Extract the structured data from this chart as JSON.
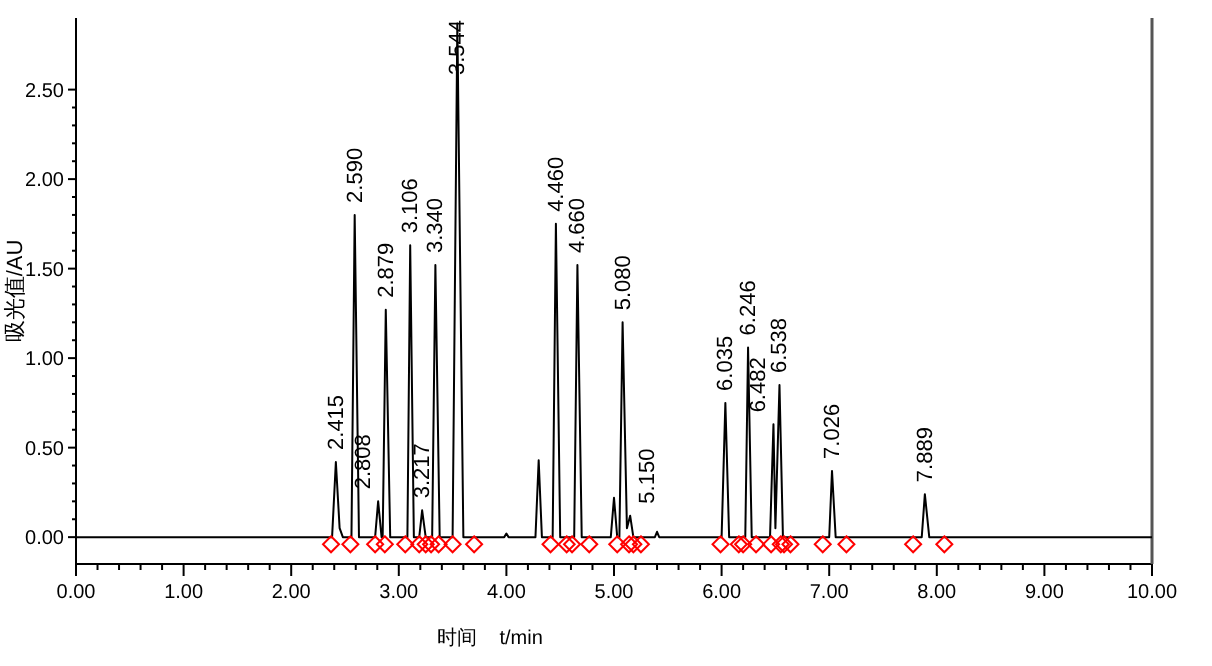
{
  "chart_data": {
    "type": "line",
    "xlabel": "时间    t/min",
    "ylabel": "吸光值/AU",
    "xlim": [
      0,
      10
    ],
    "ylim": [
      -0.15,
      2.9
    ],
    "xticks": [
      {
        "value": 0,
        "label": "0.00"
      },
      {
        "value": 1,
        "label": "1.00"
      },
      {
        "value": 2,
        "label": "2.00"
      },
      {
        "value": 3,
        "label": "3.00"
      },
      {
        "value": 4,
        "label": "4.00"
      },
      {
        "value": 5,
        "label": "5.00"
      },
      {
        "value": 6,
        "label": "6.00"
      },
      {
        "value": 7,
        "label": "7.00"
      },
      {
        "value": 8,
        "label": "8.00"
      },
      {
        "value": 9,
        "label": "9.00"
      },
      {
        "value": 10,
        "label": "10.00"
      }
    ],
    "yticks": [
      {
        "value": 0,
        "label": "0.00"
      },
      {
        "value": 0.5,
        "label": "0.50"
      },
      {
        "value": 1,
        "label": "1.00"
      },
      {
        "value": 1.5,
        "label": "1.50"
      },
      {
        "value": 2,
        "label": "2.00"
      },
      {
        "value": 2.5,
        "label": "2.50"
      }
    ],
    "grid": false,
    "series": [
      {
        "color": "#000000",
        "marker": "none",
        "x": [
          0,
          2.38,
          2.415,
          2.45,
          2.48,
          2.56,
          2.59,
          2.63,
          2.78,
          2.808,
          2.84,
          2.85,
          2.879,
          2.92,
          3.08,
          3.106,
          3.14,
          3.19,
          3.217,
          3.25,
          3.31,
          3.34,
          3.38,
          3.5,
          3.544,
          3.6,
          3.98,
          4.0,
          4.02,
          4.27,
          4.3,
          4.33,
          4.43,
          4.46,
          4.5,
          4.63,
          4.66,
          4.7,
          4.97,
          5.0,
          5.03,
          5.05,
          5.08,
          5.12,
          5.15,
          5.18,
          5.38,
          5.4,
          5.42,
          6.0,
          6.035,
          6.07,
          6.22,
          6.246,
          6.28,
          6.45,
          6.482,
          6.5,
          6.538,
          6.57,
          7.0,
          7.026,
          7.06,
          7.86,
          7.889,
          7.93,
          10
        ],
        "values": [
          0,
          0,
          0.42,
          0.05,
          0,
          0,
          1.8,
          0,
          0,
          0.2,
          0,
          0,
          1.27,
          0,
          0,
          1.63,
          0,
          0,
          0.15,
          0,
          0,
          1.52,
          0,
          0,
          2.87,
          0,
          0,
          0.02,
          0,
          0,
          0.43,
          0,
          0,
          1.75,
          0,
          0,
          1.52,
          0,
          0,
          0.22,
          0,
          0,
          1.2,
          0.05,
          0.12,
          0,
          0,
          0.03,
          0,
          0,
          0.75,
          0,
          0,
          1.06,
          0,
          0,
          0.63,
          0.05,
          0.85,
          0,
          0,
          0.37,
          0,
          0,
          0.24,
          0,
          0
        ]
      },
      {
        "type": "scatter",
        "color": "#ff0000",
        "marker": "diamond",
        "x": [
          2.37,
          2.55,
          2.78,
          2.87,
          3.06,
          3.19,
          3.25,
          3.3,
          3.37,
          3.5,
          3.7,
          4.41,
          4.56,
          4.61,
          4.77,
          5.03,
          5.14,
          5.18,
          5.25,
          5.99,
          6.16,
          6.2,
          6.32,
          6.46,
          6.55,
          6.58,
          6.64,
          6.94,
          7.16,
          7.78,
          8.07
        ],
        "values": [
          -0.04,
          -0.04,
          -0.04,
          -0.04,
          -0.04,
          -0.04,
          -0.04,
          -0.04,
          -0.04,
          -0.04,
          -0.04,
          -0.04,
          -0.04,
          -0.04,
          -0.04,
          -0.04,
          -0.04,
          -0.04,
          -0.04,
          -0.04,
          -0.04,
          -0.04,
          -0.04,
          -0.04,
          -0.04,
          -0.04,
          -0.04,
          -0.04,
          -0.04,
          -0.04,
          -0.04
        ]
      }
    ],
    "annotations": [
      {
        "text": "2.415",
        "x": 2.415,
        "y": 0.42
      },
      {
        "text": "2.590",
        "x": 2.59,
        "y": 1.8
      },
      {
        "text": "2.808",
        "x": 2.808,
        "y": 0.2
      },
      {
        "text": "2.879",
        "x": 2.879,
        "y": 1.27
      },
      {
        "text": "3.106",
        "x": 3.106,
        "y": 1.63
      },
      {
        "text": "3.217",
        "x": 3.217,
        "y": 0.15
      },
      {
        "text": "3.340",
        "x": 3.34,
        "y": 1.52
      },
      {
        "text": "3.544",
        "x": 3.544,
        "y": 2.87
      },
      {
        "text": "4.460",
        "x": 4.46,
        "y": 1.75
      },
      {
        "text": "4.660",
        "x": 4.66,
        "y": 1.52
      },
      {
        "text": "5.080",
        "x": 5.08,
        "y": 1.2
      },
      {
        "text": "5.150",
        "x": 5.15,
        "y": 0.12
      },
      {
        "text": "6.035",
        "x": 6.035,
        "y": 0.75
      },
      {
        "text": "6.246",
        "x": 6.246,
        "y": 1.06
      },
      {
        "text": "6.482",
        "x": 6.482,
        "y": 0.63
      },
      {
        "text": "6.538",
        "x": 6.538,
        "y": 0.85
      },
      {
        "text": "7.026",
        "x": 7.026,
        "y": 0.37
      },
      {
        "text": "7.889",
        "x": 7.889,
        "y": 0.24
      }
    ]
  }
}
